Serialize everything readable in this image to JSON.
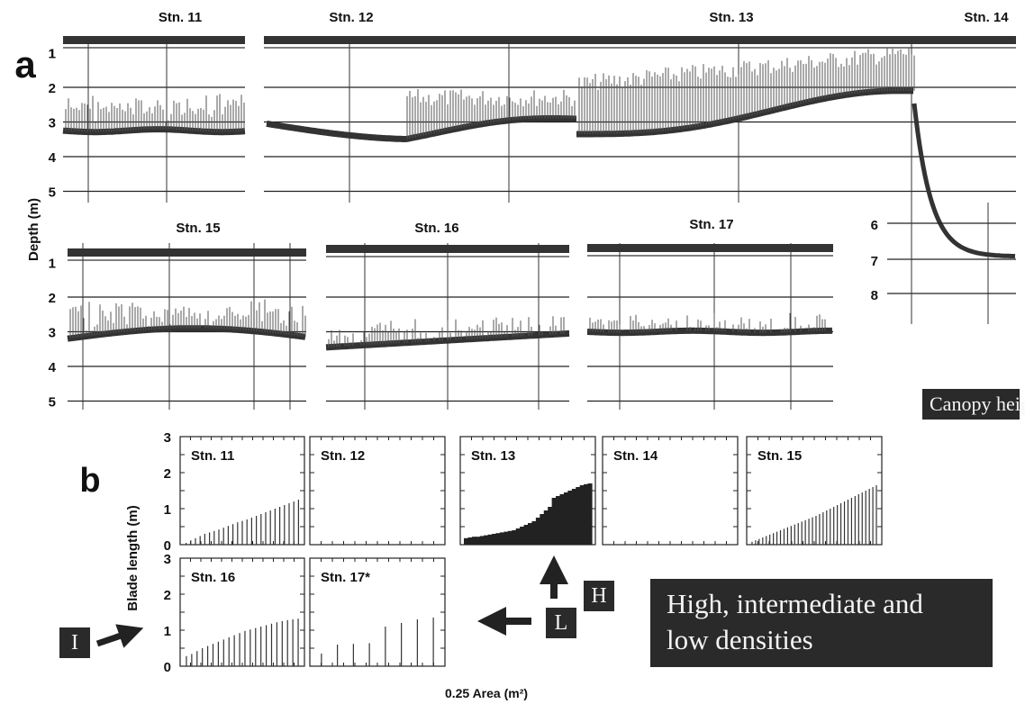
{
  "chart_data": [
    {
      "panel": "a",
      "type": "line",
      "ylabel": "Depth (m)",
      "sections": [
        {
          "station": "Stn. 11",
          "yticks": [
            1,
            2,
            3,
            4,
            5
          ],
          "bottom_depth": 3.25,
          "canopy_top": 2.4
        },
        {
          "station": "Stn. 12",
          "yticks": [],
          "bottom_depth": 3.5,
          "canopy_top": 2.3
        },
        {
          "station": "Stn. 13",
          "yticks": [],
          "bottom_depth": 3.0,
          "canopy_top": 1.9
        },
        {
          "station": "Stn. 14",
          "yticks": [
            6,
            7,
            8
          ],
          "bottom_depth": 7.0,
          "canopy_top": null
        },
        {
          "station": "Stn. 15",
          "yticks": [
            1,
            2,
            3,
            4,
            5
          ],
          "bottom_depth": 3.1,
          "canopy_top": 2.3
        },
        {
          "station": "Stn. 16",
          "yticks": [],
          "bottom_depth": 3.3,
          "canopy_top": 2.6
        },
        {
          "station": "Stn. 17",
          "yticks": [],
          "bottom_depth": 3.0,
          "canopy_top": 2.95
        }
      ]
    },
    {
      "panel": "b",
      "type": "bar",
      "ylabel": "Blade length (m)",
      "xlabel": "0.25 Area (m²)",
      "yticks": [
        0,
        1,
        2,
        3
      ],
      "ylim": [
        0,
        3
      ],
      "series": [
        {
          "name": "Stn. 11",
          "values": [
            0.05,
            0.12,
            0.18,
            0.24,
            0.3,
            0.34,
            0.38,
            0.42,
            0.47,
            0.52,
            0.57,
            0.62,
            0.66,
            0.7,
            0.75,
            0.8,
            0.85,
            0.9,
            0.95,
            1.0,
            1.05,
            1.1,
            1.15,
            1.2,
            1.25
          ]
        },
        {
          "name": "Stn. 12",
          "values": []
        },
        {
          "name": "Stn. 13",
          "values": [
            0.18,
            0.2,
            0.22,
            0.22,
            0.24,
            0.26,
            0.28,
            0.3,
            0.32,
            0.34,
            0.36,
            0.38,
            0.4,
            0.45,
            0.5,
            0.55,
            0.6,
            0.65,
            0.75,
            0.85,
            0.95,
            1.05,
            1.3,
            1.35,
            1.4,
            1.45,
            1.5,
            1.55,
            1.6,
            1.65,
            1.68,
            1.7
          ]
        },
        {
          "name": "Stn. 14",
          "values": []
        },
        {
          "name": "Stn. 15",
          "values": [
            0.08,
            0.12,
            0.16,
            0.2,
            0.24,
            0.28,
            0.32,
            0.36,
            0.4,
            0.44,
            0.48,
            0.52,
            0.56,
            0.6,
            0.64,
            0.68,
            0.72,
            0.76,
            0.8,
            0.85,
            0.9,
            0.95,
            1.0,
            1.05,
            1.1,
            1.15,
            1.2,
            1.25,
            1.3,
            1.35,
            1.4,
            1.45,
            1.5,
            1.55,
            1.6,
            1.65
          ]
        },
        {
          "name": "Stn. 16",
          "values": [
            0.28,
            0.34,
            0.42,
            0.5,
            0.56,
            0.62,
            0.68,
            0.74,
            0.8,
            0.86,
            0.92,
            0.98,
            1.02,
            1.06,
            1.1,
            1.14,
            1.18,
            1.22,
            1.25,
            1.28,
            1.3,
            1.32
          ]
        },
        {
          "name": "Stn. 17*",
          "values": [
            0.35,
            0.6,
            0.62,
            0.64,
            1.1,
            1.2,
            1.3,
            1.35
          ]
        }
      ]
    }
  ],
  "figure": {
    "panel_a_letter": "a",
    "panel_b_letter": "b",
    "annotations": {
      "canopy_label": "Canopy height",
      "density_label_line1": "High, intermediate and",
      "density_label_line2": "low densities",
      "marker_h": "H",
      "marker_l": "L",
      "marker_i": "I"
    }
  }
}
